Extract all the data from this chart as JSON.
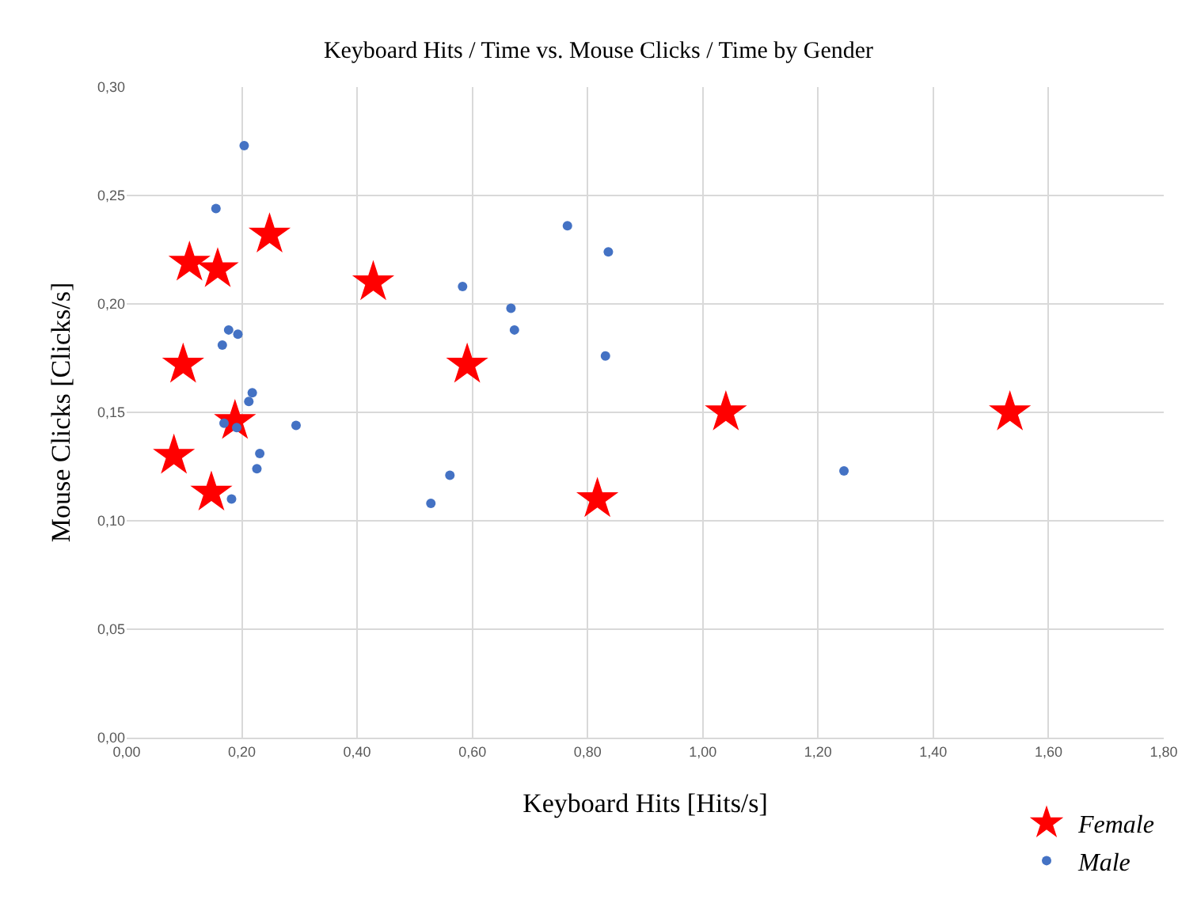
{
  "chart_data": {
    "type": "scatter",
    "title": "Keyboard Hits / Time vs. Mouse Clicks / Time by Gender",
    "xlabel": "Keyboard Hits [Hits/s]",
    "ylabel": "Mouse Clicks [Clicks/s]",
    "series": [
      {
        "name": "Female",
        "color": "#ff0000",
        "marker": "star",
        "x": [
          0.082,
          0.109,
          0.158,
          0.098,
          0.248,
          0.147,
          0.188,
          0.428,
          0.591,
          0.817,
          1.04,
          1.533
        ],
        "values": [
          0.13,
          0.219,
          0.216,
          0.172,
          0.232,
          0.113,
          0.146,
          0.21,
          0.172,
          0.11,
          0.15,
          0.15
        ]
      },
      {
        "name": "Male",
        "color": "#4472c4",
        "marker": "circle",
        "x": [
          0.204,
          0.155,
          0.177,
          0.193,
          0.166,
          0.218,
          0.212,
          0.169,
          0.191,
          0.294,
          0.231,
          0.226,
          0.182,
          0.528,
          0.561,
          0.583,
          0.667,
          0.673,
          0.765,
          0.836,
          0.831,
          1.245
        ],
        "values": [
          0.273,
          0.244,
          0.188,
          0.186,
          0.181,
          0.159,
          0.155,
          0.145,
          0.143,
          0.144,
          0.131,
          0.124,
          0.11,
          0.108,
          0.121,
          0.208,
          0.198,
          0.188,
          0.236,
          0.224,
          0.176,
          0.123
        ]
      }
    ],
    "xlim": [
      0,
      1.8
    ],
    "xticks": [
      {
        "value": 0,
        "label": "0,00"
      },
      {
        "value": 0.2,
        "label": "0,20"
      },
      {
        "value": 0.4,
        "label": "0,40"
      },
      {
        "value": 0.6,
        "label": "0,60"
      },
      {
        "value": 0.8,
        "label": "0,80"
      },
      {
        "value": 1.0,
        "label": "1,00"
      },
      {
        "value": 1.2,
        "label": "1,20"
      },
      {
        "value": 1.4,
        "label": "1,40"
      },
      {
        "value": 1.6,
        "label": "1,60"
      },
      {
        "value": 1.8,
        "label": "1,80"
      }
    ],
    "ylim": [
      0,
      0.3
    ],
    "yticks": [
      {
        "value": 0,
        "label": "0,00"
      },
      {
        "value": 0.05,
        "label": "0,05"
      },
      {
        "value": 0.1,
        "label": "0,10"
      },
      {
        "value": 0.15,
        "label": "0,15"
      },
      {
        "value": 0.2,
        "label": "0,20"
      },
      {
        "value": 0.25,
        "label": "0,25"
      },
      {
        "value": 0.3,
        "label": "0,30"
      }
    ],
    "grid": true,
    "legend": "bottom right"
  }
}
